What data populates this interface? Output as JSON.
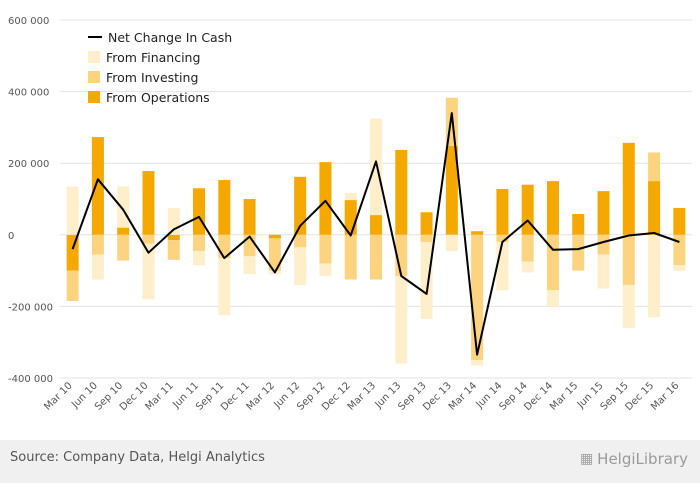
{
  "chart_data": {
    "type": "bar",
    "categories": [
      "Mar 10",
      "Jun 10",
      "Sep 10",
      "Dec 10",
      "Mar 11",
      "Jun 11",
      "Sep 11",
      "Dec 11",
      "Mar 12",
      "Jun 12",
      "Sep 12",
      "Dec 12",
      "Mar 13",
      "Jun 13",
      "Sep 13",
      "Dec 13",
      "Mar 14",
      "Jun 14",
      "Sep 14",
      "Dec 14",
      "Mar 15",
      "Jun 15",
      "Sep 15",
      "Dec 15",
      "Mar 16"
    ],
    "series": [
      {
        "name": "From Operations",
        "color": "#f5a800",
        "values": [
          -100000,
          273000,
          20000,
          178000,
          -15000,
          130000,
          153000,
          100000,
          -10000,
          162000,
          203000,
          97000,
          55000,
          237000,
          63000,
          248000,
          10000,
          128000,
          140000,
          150000,
          58000,
          122000,
          257000,
          150000,
          75000
        ]
      },
      {
        "name": "From Investing",
        "color": "#fcd37f",
        "values": [
          -85000,
          -55000,
          -72000,
          -25000,
          -55000,
          -45000,
          -65000,
          -60000,
          -90000,
          -35000,
          -80000,
          -125000,
          -125000,
          -115000,
          -20000,
          135000,
          -350000,
          -20000,
          -75000,
          -155000,
          -100000,
          -55000,
          -140000,
          80000,
          -85000
        ]
      },
      {
        "name": "From Financing",
        "color": "#feeec9",
        "values": [
          135000,
          -70000,
          115000,
          -155000,
          75000,
          -40000,
          -160000,
          -50000,
          -10000,
          -105000,
          -35000,
          20000,
          270000,
          -245000,
          -215000,
          -45000,
          -15000,
          -135000,
          -30000,
          -45000,
          0,
          -95000,
          -120000,
          -230000,
          -15000
        ]
      }
    ],
    "line": {
      "name": "Net Change In Cash",
      "color": "#000000",
      "values": [
        -40000,
        155000,
        70000,
        -50000,
        15000,
        50000,
        -65000,
        -5000,
        -105000,
        25000,
        95000,
        -2000,
        205000,
        -115000,
        -165000,
        340000,
        -335000,
        -20000,
        40000,
        -42000,
        -40000,
        -20000,
        -2000,
        5000,
        -20000
      ]
    },
    "ylim": [
      -400000,
      600000
    ],
    "yticks": [
      "600 000",
      "400 000",
      "200 000",
      "0",
      "-200 000",
      "-400 000"
    ],
    "ytick_values": [
      600000,
      400000,
      200000,
      0,
      -200000,
      -400000
    ],
    "grid": true,
    "legend_position": "top-left"
  },
  "legend": [
    {
      "label": "Net Change In Cash",
      "kind": "line",
      "color": "#000000"
    },
    {
      "label": "From Financing",
      "kind": "box",
      "color": "#feeec9"
    },
    {
      "label": "From Investing",
      "kind": "box",
      "color": "#fcd37f"
    },
    {
      "label": "From Operations",
      "kind": "box",
      "color": "#f5a800"
    }
  ],
  "footer": {
    "source": "Source: Company Data, Helgi Analytics",
    "brand": "HelgiLibrary"
  }
}
